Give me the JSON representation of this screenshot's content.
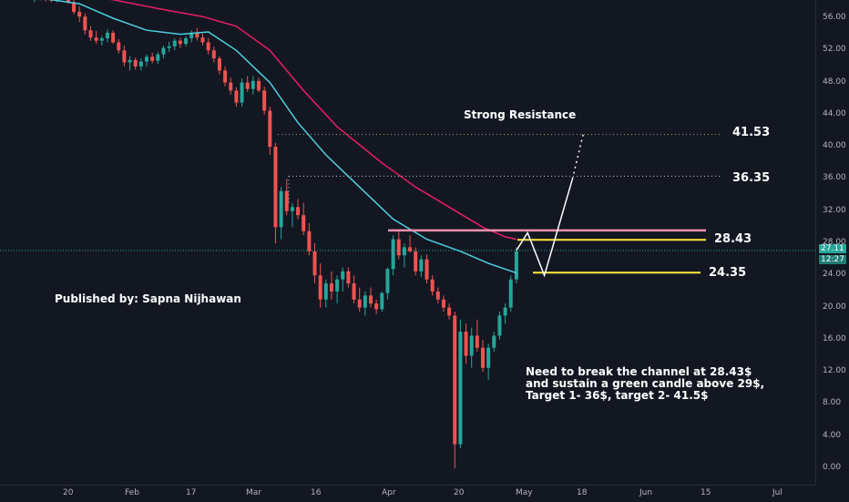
{
  "chart_data": {
    "type": "candlestick",
    "price_ticks": [
      "56.00",
      "52.00",
      "48.00",
      "44.00",
      "40.00",
      "36.00",
      "32.00",
      "28.00",
      "24.00",
      "20.00",
      "16.00",
      "12.00",
      "8.00",
      "4.00",
      "0.00"
    ],
    "price_tick_values": [
      56,
      52,
      48,
      44,
      40,
      36,
      32,
      28,
      24,
      20,
      16,
      12,
      8,
      4,
      0
    ],
    "time_ticks": [
      "20",
      "Feb",
      "17",
      "Mar",
      "16",
      "Apr",
      "20",
      "May",
      "18",
      "Jun",
      "15",
      "Jul"
    ],
    "ylim": [
      -1.0,
      59.0
    ],
    "last_price": "27.11",
    "countdown": "12:27",
    "levels": [
      {
        "label": "41.53",
        "value": 41.53,
        "style": "dotted"
      },
      {
        "label": "36.35",
        "value": 36.35,
        "style": "dotted"
      },
      {
        "label": "28.43",
        "value": 28.43,
        "style": "solid"
      },
      {
        "label": "24.35",
        "value": 24.35,
        "style": "solid"
      }
    ],
    "channel_top": 29.6,
    "candles": [
      [
        58.4,
        58.6,
        58.0,
        58.4
      ],
      [
        58.4,
        58.8,
        58.2,
        58.5
      ],
      [
        58.5,
        58.7,
        58.1,
        58.3
      ],
      [
        58.3,
        58.6,
        58.0,
        58.2
      ],
      [
        58.2,
        58.8,
        58.0,
        58.6
      ],
      [
        58.6,
        59.0,
        58.3,
        58.5
      ],
      [
        58.5,
        58.8,
        57.8,
        58.0
      ],
      [
        58.0,
        58.3,
        56.5,
        56.8
      ],
      [
        56.8,
        57.5,
        55.5,
        56.2
      ],
      [
        56.2,
        56.6,
        54.0,
        54.5
      ],
      [
        54.5,
        55.0,
        53.2,
        53.6
      ],
      [
        53.6,
        54.4,
        52.8,
        53.2
      ],
      [
        53.2,
        53.8,
        52.6,
        53.5
      ],
      [
        53.5,
        54.6,
        53.0,
        54.2
      ],
      [
        54.2,
        54.5,
        52.8,
        53.0
      ],
      [
        53.0,
        53.4,
        51.6,
        52.0
      ],
      [
        52.0,
        52.6,
        50.0,
        50.5
      ],
      [
        50.5,
        51.3,
        49.5,
        50.8
      ],
      [
        50.8,
        51.1,
        49.6,
        50.0
      ],
      [
        50.0,
        51.0,
        49.5,
        50.6
      ],
      [
        50.6,
        51.5,
        50.0,
        51.2
      ],
      [
        51.2,
        51.7,
        50.4,
        50.7
      ],
      [
        50.7,
        51.8,
        50.3,
        51.5
      ],
      [
        51.5,
        52.6,
        51.0,
        52.3
      ],
      [
        52.3,
        53.1,
        51.8,
        52.5
      ],
      [
        52.5,
        53.5,
        52.0,
        53.2
      ],
      [
        53.2,
        53.6,
        52.3,
        52.8
      ],
      [
        52.8,
        53.8,
        52.5,
        53.5
      ],
      [
        53.5,
        54.5,
        53.0,
        54.2
      ],
      [
        54.2,
        54.8,
        53.2,
        53.6
      ],
      [
        53.6,
        54.1,
        52.6,
        53.0
      ],
      [
        53.0,
        53.5,
        51.5,
        52.0
      ],
      [
        52.0,
        52.5,
        50.5,
        51.0
      ],
      [
        51.0,
        51.3,
        49.0,
        49.5
      ],
      [
        49.5,
        50.0,
        47.5,
        48.0
      ],
      [
        48.0,
        48.6,
        46.5,
        47.0
      ],
      [
        47.0,
        47.4,
        45.0,
        45.5
      ],
      [
        45.5,
        48.5,
        45.0,
        48.0
      ],
      [
        48.0,
        48.8,
        46.8,
        47.2
      ],
      [
        47.2,
        48.8,
        46.5,
        48.2
      ],
      [
        48.2,
        48.6,
        46.8,
        47.0
      ],
      [
        47.0,
        47.5,
        44.0,
        44.5
      ],
      [
        44.5,
        45.0,
        39.0,
        40.0
      ],
      [
        40.0,
        40.5,
        28.0,
        30.0
      ],
      [
        30.0,
        35.0,
        28.5,
        34.5
      ],
      [
        34.5,
        36.0,
        31.5,
        32.0
      ],
      [
        32.0,
        33.0,
        30.0,
        32.5
      ],
      [
        32.5,
        33.5,
        31.0,
        31.5
      ],
      [
        31.5,
        33.0,
        29.0,
        29.5
      ],
      [
        29.5,
        30.5,
        26.5,
        27.0
      ],
      [
        27.0,
        28.0,
        23.0,
        24.0
      ],
      [
        24.0,
        25.5,
        20.0,
        21.0
      ],
      [
        21.0,
        23.5,
        20.0,
        23.0
      ],
      [
        23.0,
        24.5,
        21.0,
        22.0
      ],
      [
        22.0,
        24.0,
        20.5,
        23.5
      ],
      [
        23.5,
        25.0,
        22.0,
        24.5
      ],
      [
        24.5,
        25.0,
        22.5,
        23.0
      ],
      [
        23.0,
        24.0,
        20.5,
        21.0
      ],
      [
        21.0,
        22.5,
        19.5,
        20.0
      ],
      [
        20.0,
        22.0,
        19.0,
        21.5
      ],
      [
        21.5,
        22.5,
        20.0,
        20.5
      ],
      [
        20.5,
        21.0,
        19.2,
        19.8
      ],
      [
        19.8,
        22.0,
        19.5,
        21.8
      ],
      [
        21.8,
        25.0,
        21.0,
        24.8
      ],
      [
        24.8,
        29.0,
        24.0,
        28.5
      ],
      [
        28.5,
        29.5,
        26.0,
        26.5
      ],
      [
        26.5,
        28.0,
        25.0,
        27.5
      ],
      [
        27.5,
        29.0,
        26.8,
        27.0
      ],
      [
        27.0,
        27.5,
        24.0,
        24.5
      ],
      [
        24.5,
        26.5,
        23.8,
        26.0
      ],
      [
        26.0,
        26.6,
        23.0,
        23.5
      ],
      [
        23.5,
        24.0,
        21.5,
        22.0
      ],
      [
        22.0,
        22.5,
        20.5,
        21.0
      ],
      [
        21.0,
        21.5,
        19.5,
        20.0
      ],
      [
        20.0,
        20.5,
        18.5,
        19.0
      ],
      [
        19.0,
        19.5,
        0.0,
        3.0
      ],
      [
        3.0,
        18.5,
        2.5,
        17.0
      ],
      [
        17.0,
        18.0,
        13.0,
        14.0
      ],
      [
        14.0,
        17.5,
        12.5,
        16.5
      ],
      [
        16.5,
        18.5,
        14.5,
        15.0
      ],
      [
        15.0,
        16.0,
        12.0,
        12.5
      ],
      [
        12.5,
        15.5,
        11.0,
        15.0
      ],
      [
        15.0,
        17.0,
        14.5,
        16.5
      ],
      [
        16.5,
        19.5,
        16.0,
        19.0
      ],
      [
        19.0,
        20.5,
        18.0,
        20.0
      ],
      [
        20.0,
        24.0,
        19.5,
        23.5
      ],
      [
        23.5,
        27.5,
        23.0,
        27.0
      ]
    ],
    "ema_fast": [
      [
        0,
        58.6
      ],
      [
        8,
        57.8
      ],
      [
        14,
        56.0
      ],
      [
        20,
        54.5
      ],
      [
        26,
        54.0
      ],
      [
        31,
        54.3
      ],
      [
        36,
        52.0
      ],
      [
        42,
        48.0
      ],
      [
        47,
        43.0
      ],
      [
        52,
        39.0
      ],
      [
        58,
        35.0
      ],
      [
        64,
        31.0
      ],
      [
        70,
        28.5
      ],
      [
        76,
        27.0
      ],
      [
        81,
        25.5
      ],
      [
        86,
        24.3
      ]
    ],
    "ema_slow": [
      [
        5,
        59.0
      ],
      [
        14,
        58.3
      ],
      [
        22,
        57.2
      ],
      [
        30,
        56.2
      ],
      [
        36,
        55.0
      ],
      [
        42,
        52.0
      ],
      [
        48,
        47.0
      ],
      [
        54,
        42.5
      ],
      [
        62,
        38.0
      ],
      [
        68,
        35.0
      ],
      [
        74,
        32.5
      ],
      [
        80,
        30.0
      ],
      [
        84,
        28.8
      ],
      [
        86,
        28.5
      ]
    ],
    "projection": [
      [
        86,
        27.1
      ],
      [
        88,
        29.3
      ],
      [
        91,
        24.0
      ],
      [
        96,
        36.0
      ]
    ],
    "projection_dotted": [
      [
        96,
        36.0
      ],
      [
        98,
        41.8
      ]
    ]
  },
  "annotations": {
    "strong_resistance": "Strong Resistance",
    "published_by": "Published by: Sapna Nijhawan",
    "note_lines": [
      "Need to break the channel at 28.43$",
      "and sustain a green candle above 29$,",
      "Target 1- 36$, target 2- 41.5$"
    ]
  },
  "colors": {
    "background": "#131722",
    "up": "#26a69a",
    "down": "#ef5350",
    "ema_fast": "#4dd0e1",
    "ema_slow": "#e91e63",
    "channel": "#f48fb1",
    "support": "#ffeb3b",
    "projection": "#ffffff"
  }
}
